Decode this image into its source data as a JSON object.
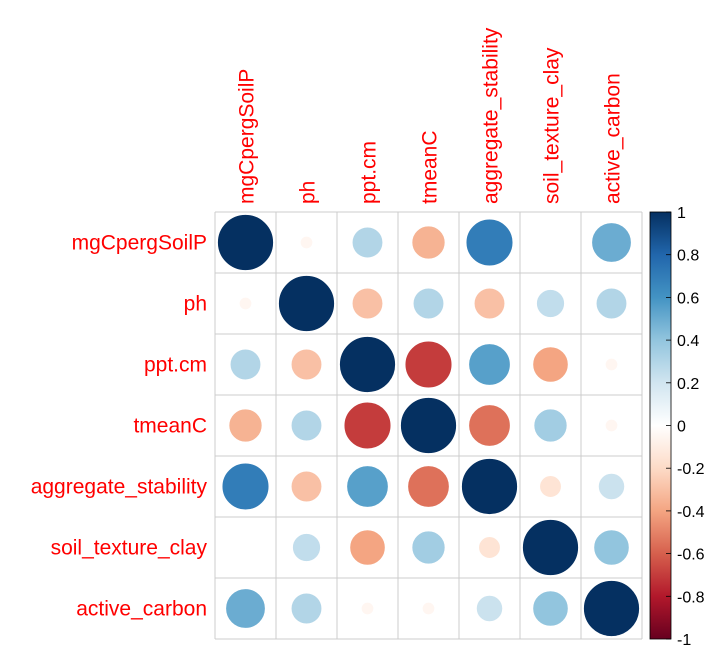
{
  "chart_data": {
    "type": "correlogram",
    "variables": [
      "mgCpergSoilP",
      "ph",
      "ppt.cm",
      "tmeanC",
      "aggregate_stability",
      "soil_texture_clay",
      "active_carbon"
    ],
    "matrix": [
      [
        1.0,
        -0.05,
        0.3,
        -0.35,
        0.7,
        0.0,
        0.5
      ],
      [
        -0.05,
        1.0,
        -0.3,
        0.3,
        -0.3,
        0.25,
        0.3
      ],
      [
        0.3,
        -0.3,
        1.0,
        -0.7,
        0.55,
        -0.4,
        -0.05
      ],
      [
        -0.35,
        0.3,
        -0.7,
        1.0,
        -0.55,
        0.35,
        -0.05
      ],
      [
        0.7,
        -0.3,
        0.55,
        -0.55,
        1.0,
        -0.15,
        0.22
      ],
      [
        0.0,
        0.25,
        -0.4,
        0.35,
        -0.15,
        1.0,
        0.4
      ],
      [
        0.5,
        0.3,
        -0.05,
        -0.05,
        0.22,
        0.4,
        1.0
      ]
    ],
    "colorbar": {
      "range": [
        -1,
        1
      ],
      "ticks": [
        "-1",
        "-0.8",
        "-0.6",
        "-0.4",
        "-0.2",
        "0",
        "0.2",
        "0.4",
        "0.6",
        "0.8",
        "1"
      ]
    },
    "colors": {
      "label": "#ff0000",
      "grid": "#cccccc",
      "scale": [
        "#67001f",
        "#b2182b",
        "#d6604d",
        "#f4a582",
        "#fddbc7",
        "#ffffff",
        "#d1e5f0",
        "#92c5de",
        "#4393c3",
        "#2166ac",
        "#053061"
      ]
    }
  }
}
